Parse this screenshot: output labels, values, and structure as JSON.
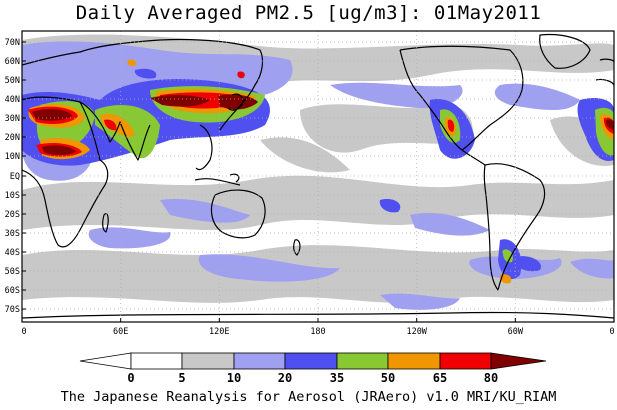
{
  "title": "Daily Averaged PM2.5 [ug/m3]: 01May2011",
  "credit": "The Japanese Reanalysis for Aerosol (JRAero) v1.0 MRI/KU_RIAM",
  "map": {
    "projection": "equirectangular, 0 to 360 longitude",
    "lat_ticks": [
      "70N",
      "60N",
      "50N",
      "40N",
      "30N",
      "20N",
      "10N",
      "EQ",
      "10S",
      "20S",
      "30S",
      "40S",
      "50S",
      "60S",
      "70S"
    ],
    "lon_ticks": [
      "0",
      "60E",
      "120E",
      "180",
      "120W",
      "60W",
      "0"
    ],
    "grid": "dotted"
  },
  "colorbar": {
    "labels": [
      "0",
      "5",
      "10",
      "20",
      "35",
      "50",
      "65",
      "80"
    ],
    "colors": [
      "#ffffff",
      "#ffffff",
      "#c8c8c8",
      "#a0a0f0",
      "#5050f0",
      "#88c832",
      "#f09600",
      "#f00000",
      "#800000"
    ]
  },
  "colors": {
    "land_outline": "#000000",
    "light_gray": "#c8c8c8",
    "light_blue": "#a0a0f0",
    "blue": "#5050f0",
    "green": "#88c832",
    "orange": "#f09600",
    "red": "#f00000",
    "dark_red": "#800000"
  }
}
